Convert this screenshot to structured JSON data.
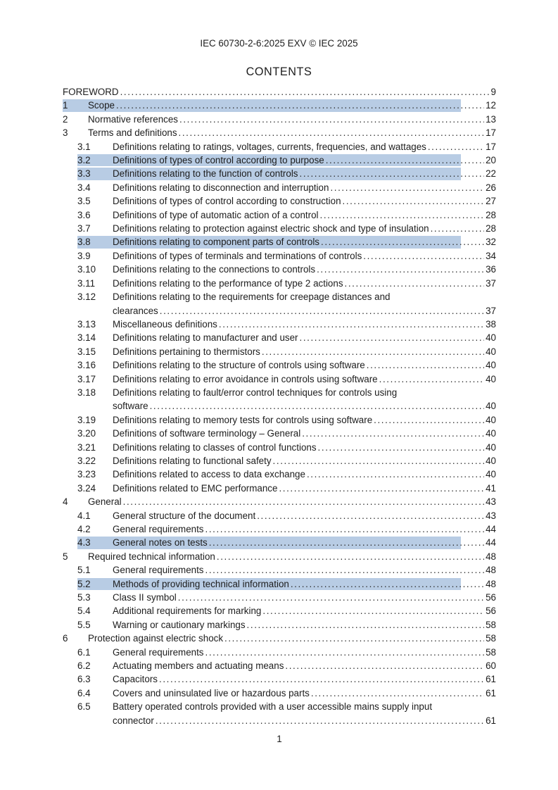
{
  "page": {
    "header": "IEC 60730-2-6:2025 EXV © IEC 2025",
    "title": "CONTENTS",
    "footer_page_number": "1"
  },
  "colors": {
    "highlight": "#b8cce4",
    "text": "#1d1d1d"
  },
  "toc": {
    "entries": [
      {
        "level": 0,
        "num": "",
        "lines": [
          "FOREWORD"
        ],
        "page": "9",
        "highlight": false
      },
      {
        "level": 1,
        "num": "1",
        "lines": [
          "Scope"
        ],
        "page": "12",
        "highlight": true
      },
      {
        "level": 1,
        "num": "2",
        "lines": [
          "Normative references"
        ],
        "page": "13",
        "highlight": false
      },
      {
        "level": 1,
        "num": "3",
        "lines": [
          "Terms and definitions"
        ],
        "page": "17",
        "highlight": false
      },
      {
        "level": 2,
        "num": "3.1",
        "lines": [
          "Definitions relating to ratings, voltages, currents, frequencies, and wattages"
        ],
        "page": "17",
        "highlight": false
      },
      {
        "level": 2,
        "num": "3.2",
        "lines": [
          "Definitions of types of control according to purpose"
        ],
        "page": "20",
        "highlight": true
      },
      {
        "level": 2,
        "num": "3.3",
        "lines": [
          "Definitions relating to the function of controls"
        ],
        "page": "22",
        "highlight": true
      },
      {
        "level": 2,
        "num": "3.4",
        "lines": [
          "Definitions relating to disconnection and interruption"
        ],
        "page": "26",
        "highlight": false
      },
      {
        "level": 2,
        "num": "3.5",
        "lines": [
          "Definitions of types of control according to construction"
        ],
        "page": "27",
        "highlight": false
      },
      {
        "level": 2,
        "num": "3.6",
        "lines": [
          "Definitions of type of automatic action of a control"
        ],
        "page": "28",
        "highlight": false
      },
      {
        "level": 2,
        "num": "3.7",
        "lines": [
          "Definitions relating to protection against electric shock and type of insulation"
        ],
        "page": "28",
        "highlight": false
      },
      {
        "level": 2,
        "num": "3.8",
        "lines": [
          "Definitions relating to component parts of controls"
        ],
        "page": "32",
        "highlight": true
      },
      {
        "level": 2,
        "num": "3.9",
        "lines": [
          "Definitions of types of terminals and terminations of controls"
        ],
        "page": "34",
        "highlight": false
      },
      {
        "level": 2,
        "num": "3.10",
        "lines": [
          "Definitions relating to the connections to controls"
        ],
        "page": "36",
        "highlight": false
      },
      {
        "level": 2,
        "num": "3.11",
        "lines": [
          "Definitions relating to the performance of type 2 actions"
        ],
        "page": "37",
        "highlight": false
      },
      {
        "level": 2,
        "num": "3.12",
        "lines": [
          "Definitions relating to the requirements for creepage distances and",
          "clearances"
        ],
        "page": "37",
        "highlight": false
      },
      {
        "level": 2,
        "num": "3.13",
        "lines": [
          "Miscellaneous definitions"
        ],
        "page": "38",
        "highlight": false
      },
      {
        "level": 2,
        "num": "3.14",
        "lines": [
          "Definitions relating to manufacturer and user"
        ],
        "page": "40",
        "highlight": false
      },
      {
        "level": 2,
        "num": "3.15",
        "lines": [
          "Definitions pertaining to thermistors"
        ],
        "page": "40",
        "highlight": false
      },
      {
        "level": 2,
        "num": "3.16",
        "lines": [
          "Definitions relating to the structure of controls using software"
        ],
        "page": "40",
        "highlight": false
      },
      {
        "level": 2,
        "num": "3.17",
        "lines": [
          "Definitions relating to error avoidance in controls using software"
        ],
        "page": "40",
        "highlight": false
      },
      {
        "level": 2,
        "num": "3.18",
        "lines": [
          "Definitions relating to fault/error control techniques for controls using",
          "software"
        ],
        "page": "40",
        "highlight": false
      },
      {
        "level": 2,
        "num": "3.19",
        "lines": [
          "Definitions relating to memory tests for controls using software"
        ],
        "page": "40",
        "highlight": false
      },
      {
        "level": 2,
        "num": "3.20",
        "lines": [
          "Definitions of software terminology – General"
        ],
        "page": "40",
        "highlight": false
      },
      {
        "level": 2,
        "num": "3.21",
        "lines": [
          "Definitions relating to classes of control functions"
        ],
        "page": "40",
        "highlight": false
      },
      {
        "level": 2,
        "num": "3.22",
        "lines": [
          "Definitions relating to functional safety"
        ],
        "page": "40",
        "highlight": false
      },
      {
        "level": 2,
        "num": "3.23",
        "lines": [
          "Definitions related to access to data exchange"
        ],
        "page": "40",
        "highlight": false
      },
      {
        "level": 2,
        "num": "3.24",
        "lines": [
          "Definitions related to EMC performance"
        ],
        "page": "41",
        "highlight": false
      },
      {
        "level": 1,
        "num": "4",
        "lines": [
          "General"
        ],
        "page": "43",
        "highlight": false
      },
      {
        "level": 2,
        "num": "4.1",
        "lines": [
          "General structure of the document"
        ],
        "page": "43",
        "highlight": false
      },
      {
        "level": 2,
        "num": "4.2",
        "lines": [
          "General requirements"
        ],
        "page": "44",
        "highlight": false
      },
      {
        "level": 2,
        "num": "4.3",
        "lines": [
          "General notes on tests"
        ],
        "page": "44",
        "highlight": true
      },
      {
        "level": 1,
        "num": "5",
        "lines": [
          "Required technical information"
        ],
        "page": "48",
        "highlight": false
      },
      {
        "level": 2,
        "num": "5.1",
        "lines": [
          "General requirements"
        ],
        "page": "48",
        "highlight": false
      },
      {
        "level": 2,
        "num": "5.2",
        "lines": [
          "Methods of providing technical information"
        ],
        "page": "48",
        "highlight": true
      },
      {
        "level": 2,
        "num": "5.3",
        "lines": [
          "Class II symbol"
        ],
        "page": "56",
        "highlight": false
      },
      {
        "level": 2,
        "num": "5.4",
        "lines": [
          "Additional requirements for marking"
        ],
        "page": "56",
        "highlight": false
      },
      {
        "level": 2,
        "num": "5.5",
        "lines": [
          "Warning or cautionary markings"
        ],
        "page": "58",
        "highlight": false
      },
      {
        "level": 1,
        "num": "6",
        "lines": [
          "Protection against electric shock"
        ],
        "page": "58",
        "highlight": false
      },
      {
        "level": 2,
        "num": "6.1",
        "lines": [
          "General requirements"
        ],
        "page": "58",
        "highlight": false
      },
      {
        "level": 2,
        "num": "6.2",
        "lines": [
          "Actuating members and actuating means"
        ],
        "page": "60",
        "highlight": false
      },
      {
        "level": 2,
        "num": "6.3",
        "lines": [
          "Capacitors"
        ],
        "page": "61",
        "highlight": false
      },
      {
        "level": 2,
        "num": "6.4",
        "lines": [
          "Covers and uninsulated live or hazardous parts"
        ],
        "page": "61",
        "highlight": false
      },
      {
        "level": 2,
        "num": "6.5",
        "lines": [
          "Battery operated controls provided with a user accessible mains supply input",
          "connector"
        ],
        "page": "61",
        "highlight": false
      }
    ]
  }
}
